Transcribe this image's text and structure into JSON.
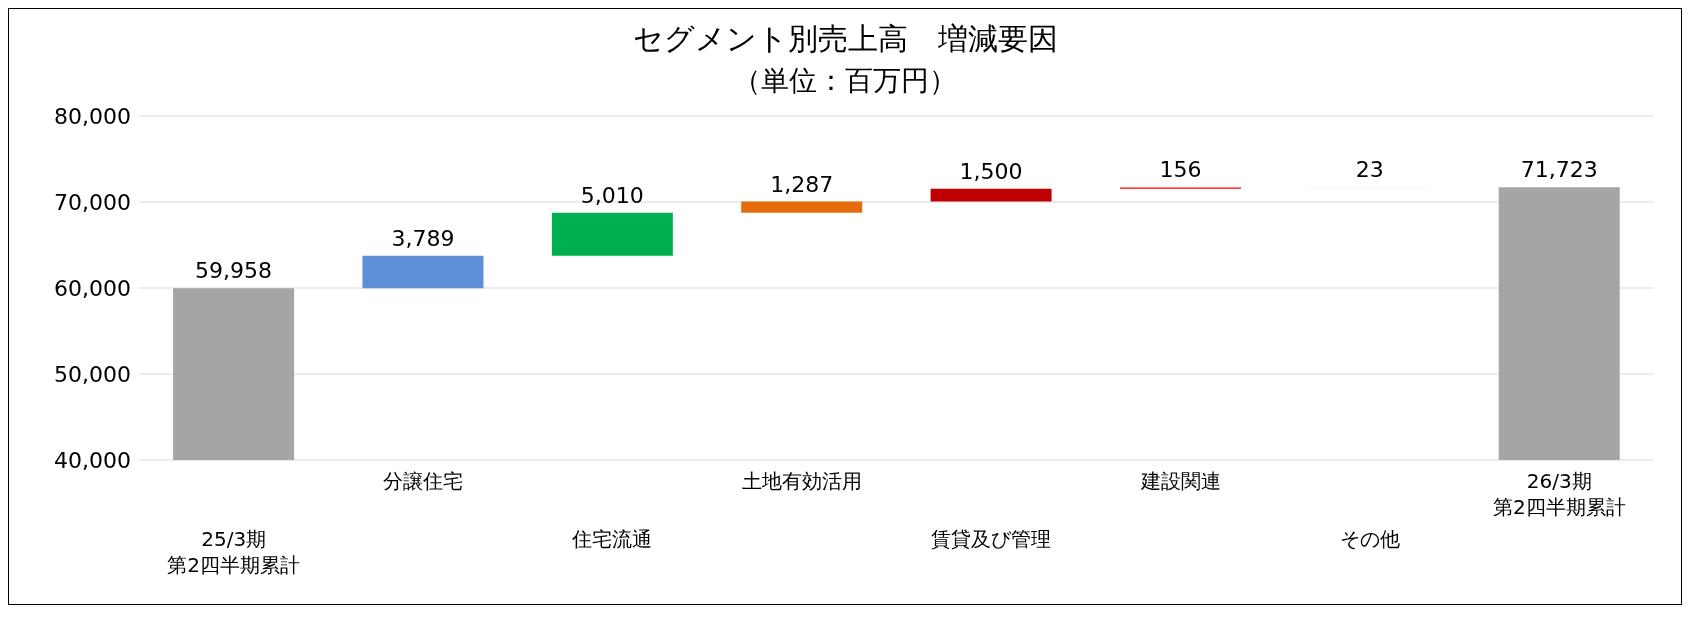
{
  "chart_data": {
    "type": "bar",
    "title": "セグメント別売上高　増減要因",
    "subtitle": "（単位：百万円）",
    "categories": [
      "25/3期第2四半期累計",
      "分譲住宅",
      "住宅流通",
      "土地有効活用",
      "賃貸及び管理",
      "建設関連",
      "その他",
      "26/3期第2四半期累計"
    ],
    "value_labels": [
      "59,958",
      "3,789",
      "5,010",
      "1,287",
      "1,500",
      "156",
      "23",
      "71,723"
    ],
    "values": [
      59958,
      3789,
      5010,
      1287,
      1500,
      156,
      23,
      71723
    ],
    "base": [
      null,
      59958,
      63747,
      68757,
      70044,
      71544,
      71700,
      null
    ],
    "colors": [
      "#a5a5a5",
      "#5b8fd6",
      "#00b050",
      "#e46c0a",
      "#c00000",
      "#ff0000",
      "#d9d9d9",
      "#a5a5a5"
    ],
    "ylim": [
      40000,
      80000
    ],
    "yticks": [
      {
        "value": 40000,
        "label": "40,000"
      },
      {
        "value": 50000,
        "label": "50,000"
      },
      {
        "value": 60000,
        "label": "60,000"
      },
      {
        "value": 70000,
        "label": "70,000"
      },
      {
        "value": 80000,
        "label": "80,000"
      }
    ],
    "grid": "y"
  }
}
